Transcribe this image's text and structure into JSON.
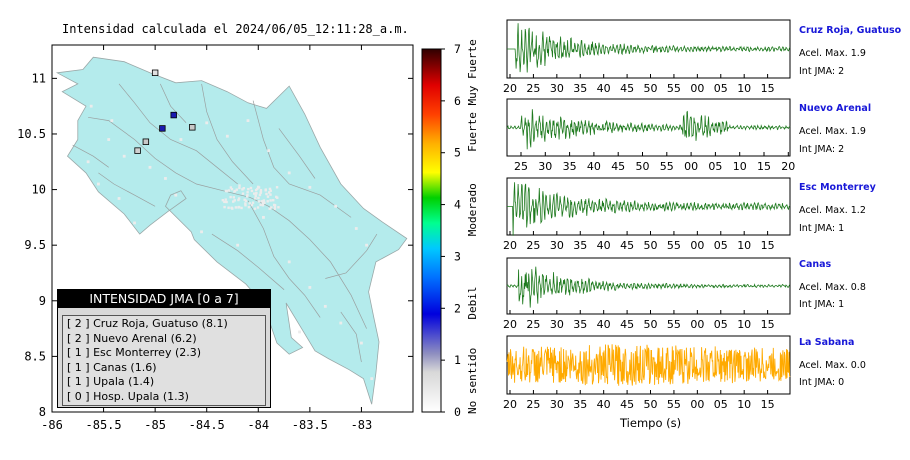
{
  "map": {
    "title": "Intensidad calculada el 2024/06/05_12:11:28_a.m.",
    "xticks": [
      "-86",
      "-85.5",
      "-85",
      "-84.5",
      "-84",
      "-83.5",
      "-83"
    ],
    "yticks": [
      "8",
      "8.5",
      "9",
      "9.5",
      "10",
      "10.5",
      "11"
    ],
    "xlim": [
      -86,
      -82.5
    ],
    "ylim": [
      8,
      11.3
    ]
  },
  "legend": {
    "title": "INTENSIDAD JMA [0 a 7]",
    "items": [
      "[ 2 ]  Cruz Roja, Guatuso (8.1)",
      "[ 2 ]  Nuevo Arenal (6.2)",
      "[ 1 ]  Esc Monterrey (2.3)",
      "[ 1 ]  Canas (1.6)",
      "[ 1 ]  Upala (1.4)",
      "[ 0 ]  Hosp. Upala (1.3)"
    ]
  },
  "colorbar": {
    "ticks": [
      "0",
      "1",
      "2",
      "3",
      "4",
      "5",
      "6",
      "7"
    ],
    "range": [
      0,
      7
    ],
    "categories": [
      "No sentido",
      "Debil",
      "Moderado",
      "Fuerte",
      "Muy Fuerte"
    ]
  },
  "stations": [
    {
      "name": "Cruz Roja, Guatuso",
      "acel": "Acel. Max. 1.9",
      "jma": "Int JMA: 2",
      "ticks": [
        "20",
        "25",
        "30",
        "35",
        "40",
        "45",
        "50",
        "55",
        "00",
        "05",
        "10",
        "15"
      ],
      "color": "#1e7a1e"
    },
    {
      "name": "Nuevo Arenal",
      "acel": "Acel. Max. 1.9",
      "jma": "Int JMA: 2",
      "ticks": [
        "25",
        "30",
        "35",
        "40",
        "45",
        "50",
        "55",
        "00",
        "05",
        "10",
        "15",
        "20"
      ],
      "color": "#1e7a1e"
    },
    {
      "name": "Esc Monterrey",
      "acel": "Acel. Max. 1.2",
      "jma": "Int JMA: 1",
      "ticks": [
        "20",
        "25",
        "30",
        "35",
        "40",
        "45",
        "50",
        "55",
        "00",
        "05",
        "10",
        "15"
      ],
      "color": "#1e7a1e"
    },
    {
      "name": "Canas",
      "acel": "Acel. Max. 0.8",
      "jma": "Int JMA: 1",
      "ticks": [
        "20",
        "25",
        "30",
        "35",
        "40",
        "45",
        "50",
        "55",
        "00",
        "05",
        "10",
        "15"
      ],
      "color": "#1e7a1e"
    },
    {
      "name": "La Sabana",
      "acel": "Acel. Max. 0.0",
      "jma": "Int JMA: 0",
      "ticks": [
        "20",
        "25",
        "30",
        "35",
        "40",
        "45",
        "50",
        "55",
        "00",
        "05",
        "10",
        "15"
      ],
      "color": "#ffaa00"
    }
  ],
  "xlabel": "Tiempo (s)",
  "chart_data": [
    {
      "type": "scatter",
      "title": "Intensidad calculada el 2024/06/05_12:11:28_a.m.",
      "xlim": [
        -86,
        -82.5
      ],
      "ylim": [
        8,
        11.3
      ],
      "points": [
        {
          "lon": -85.0,
          "lat": 11.05,
          "jma": 0,
          "color": "#e0e0e0"
        },
        {
          "lon": -84.82,
          "lat": 10.67,
          "jma": 2,
          "color": "#1a1ab0"
        },
        {
          "lon": -84.93,
          "lat": 10.55,
          "jma": 2,
          "color": "#1a1ab0"
        },
        {
          "lon": -84.64,
          "lat": 10.56,
          "jma": 1,
          "color": "#c8c8c8"
        },
        {
          "lon": -85.09,
          "lat": 10.43,
          "jma": 1,
          "color": "#c8c8c8"
        },
        {
          "lon": -85.17,
          "lat": 10.35,
          "jma": 1,
          "color": "#d0d0d0"
        }
      ]
    }
  ]
}
